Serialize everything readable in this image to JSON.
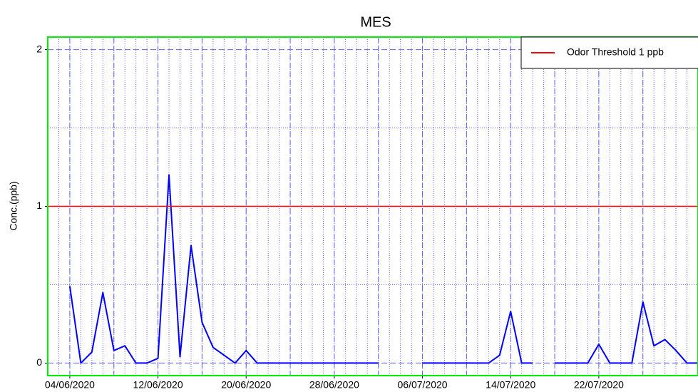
{
  "chart_data": {
    "type": "line",
    "title": "MES",
    "y_label": "Conc.(ppb)",
    "x": [
      "04/06/2020",
      "05/06/2020",
      "06/06/2020",
      "07/06/2020",
      "08/06/2020",
      "09/06/2020",
      "10/06/2020",
      "11/06/2020",
      "12/06/2020",
      "13/06/2020",
      "14/06/2020",
      "15/06/2020",
      "16/06/2020",
      "17/06/2020",
      "18/06/2020",
      "19/06/2020",
      "20/06/2020",
      "21/06/2020",
      "22/06/2020",
      "23/06/2020",
      "24/06/2020",
      "25/06/2020",
      "26/06/2020",
      "27/06/2020",
      "28/06/2020",
      "29/06/2020",
      "30/06/2020",
      "01/07/2020",
      "02/07/2020",
      "03/07/2020",
      "04/07/2020",
      "05/07/2020",
      "06/07/2020",
      "07/07/2020",
      "08/07/2020",
      "09/07/2020",
      "10/07/2020",
      "11/07/2020",
      "12/07/2020",
      "13/07/2020",
      "14/07/2020",
      "15/07/2020",
      "16/07/2020",
      "17/07/2020",
      "18/07/2020",
      "19/07/2020",
      "20/07/2020",
      "21/07/2020",
      "22/07/2020",
      "23/07/2020",
      "24/07/2020",
      "25/07/2020",
      "26/07/2020",
      "27/07/2020",
      "28/07/2020",
      "29/07/2020",
      "30/07/2020",
      "31/07/2020"
    ],
    "series": [
      {
        "color": "#0000ff",
        "values": [
          0.49,
          0,
          0.07,
          0.45,
          0.08,
          0.11,
          0,
          0,
          0.03,
          1.2,
          0.04,
          0.75,
          0.26,
          0.1,
          0.05,
          0,
          0.08,
          0,
          0,
          0,
          0,
          0,
          0,
          0,
          0,
          0,
          0,
          0,
          0,
          null,
          0,
          null,
          0,
          0,
          0,
          0,
          0,
          0,
          0,
          0.05,
          0.33,
          0,
          0,
          null,
          0,
          0,
          0,
          0,
          0.12,
          0,
          0,
          0,
          0.39,
          0.11,
          0.15,
          0.08,
          0,
          0
        ]
      }
    ],
    "threshold": {
      "name": "Odor Threshold 1 ppb",
      "value": 1,
      "color": "#ff0000"
    },
    "xlim": [
      "02/06/2020",
      "31/07/2020"
    ],
    "xticks": [
      "04/06/2020",
      "12/06/2020",
      "20/06/2020",
      "28/06/2020",
      "06/07/2020",
      "14/07/2020",
      "22/07/2020"
    ],
    "ylim": [
      -0.08,
      2.08
    ],
    "yticks": [
      0,
      1,
      2
    ],
    "grid": true,
    "legend": "upper right"
  }
}
